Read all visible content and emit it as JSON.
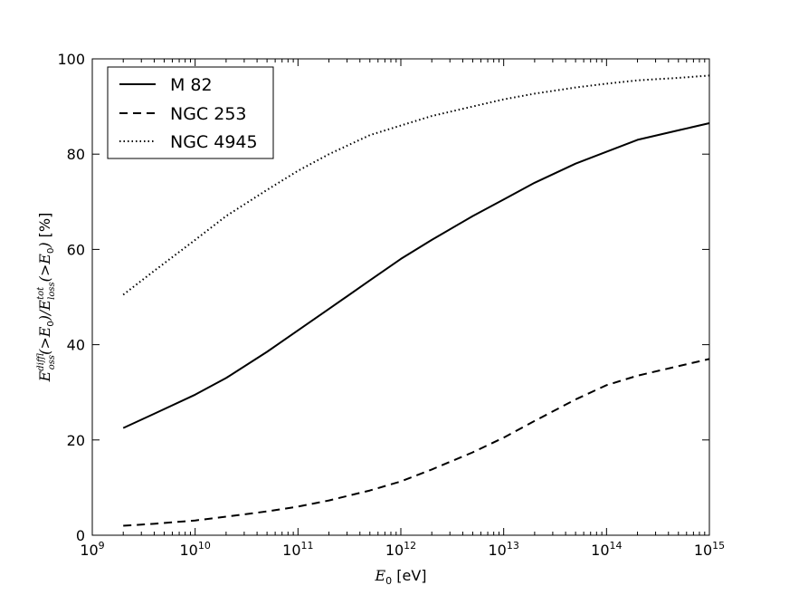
{
  "chart_data": {
    "type": "line",
    "xscale": "log",
    "xlim": [
      1000000000.0,
      1000000000000000.0
    ],
    "ylim": [
      0,
      100
    ],
    "grid": false,
    "legend_position": "top-left",
    "x_ticks": [
      {
        "value": 1000000000.0,
        "base": "10",
        "exp": "9"
      },
      {
        "value": 10000000000.0,
        "base": "10",
        "exp": "10"
      },
      {
        "value": 100000000000.0,
        "base": "10",
        "exp": "11"
      },
      {
        "value": 1000000000000.0,
        "base": "10",
        "exp": "12"
      },
      {
        "value": 10000000000000.0,
        "base": "10",
        "exp": "13"
      },
      {
        "value": 100000000000000.0,
        "base": "10",
        "exp": "14"
      },
      {
        "value": 1000000000000000.0,
        "base": "10",
        "exp": "15"
      }
    ],
    "y_ticks": [
      {
        "value": 0,
        "label": "0"
      },
      {
        "value": 20,
        "label": "20"
      },
      {
        "value": 40,
        "label": "40"
      },
      {
        "value": 60,
        "label": "60"
      },
      {
        "value": 80,
        "label": "80"
      },
      {
        "value": 100,
        "label": "100"
      }
    ],
    "xlabel": {
      "var": "E",
      "sub": "0",
      "unit": " [eV]"
    },
    "ylabel": {
      "num": "E",
      "num_sup": "diff",
      "num_sub": "loss",
      "num_arg": "(>E",
      "sep": ")/",
      "den": "E",
      "den_sup": "tot",
      "den_sub": "loss",
      "den_arg": "(>E",
      "close": ")",
      "arg_sub": "0",
      "unit": " [%]"
    },
    "x": [
      2000000000.0,
      4000000000.0,
      10000000000.0,
      20000000000.0,
      50000000000.0,
      100000000000.0,
      200000000000.0,
      500000000000.0,
      1000000000000.0,
      2000000000000.0,
      5000000000000.0,
      10000000000000.0,
      20000000000000.0,
      50000000000000.0,
      100000000000000.0,
      200000000000000.0,
      500000000000000.0,
      1000000000000000.0
    ],
    "series": [
      {
        "name": "M 82",
        "style": "solid",
        "values": [
          22.5,
          25.5,
          29.5,
          33.0,
          38.5,
          43.0,
          47.5,
          53.5,
          58.0,
          62.0,
          67.0,
          70.5,
          74.0,
          78.0,
          80.5,
          83.0,
          85.0,
          86.5
        ]
      },
      {
        "name": "NGC 253",
        "style": "dashed",
        "values": [
          2.0,
          2.4,
          3.1,
          3.9,
          5.0,
          6.0,
          7.3,
          9.4,
          11.3,
          13.8,
          17.4,
          20.5,
          24.0,
          28.5,
          31.5,
          33.5,
          35.5,
          37.0
        ]
      },
      {
        "name": "NGC 4945",
        "style": "dotted",
        "values": [
          50.5,
          55.5,
          62.0,
          67.0,
          72.5,
          76.5,
          80.0,
          84.0,
          86.0,
          88.0,
          90.0,
          91.5,
          92.7,
          94.0,
          94.8,
          95.5,
          96.0,
          96.5
        ]
      }
    ]
  }
}
